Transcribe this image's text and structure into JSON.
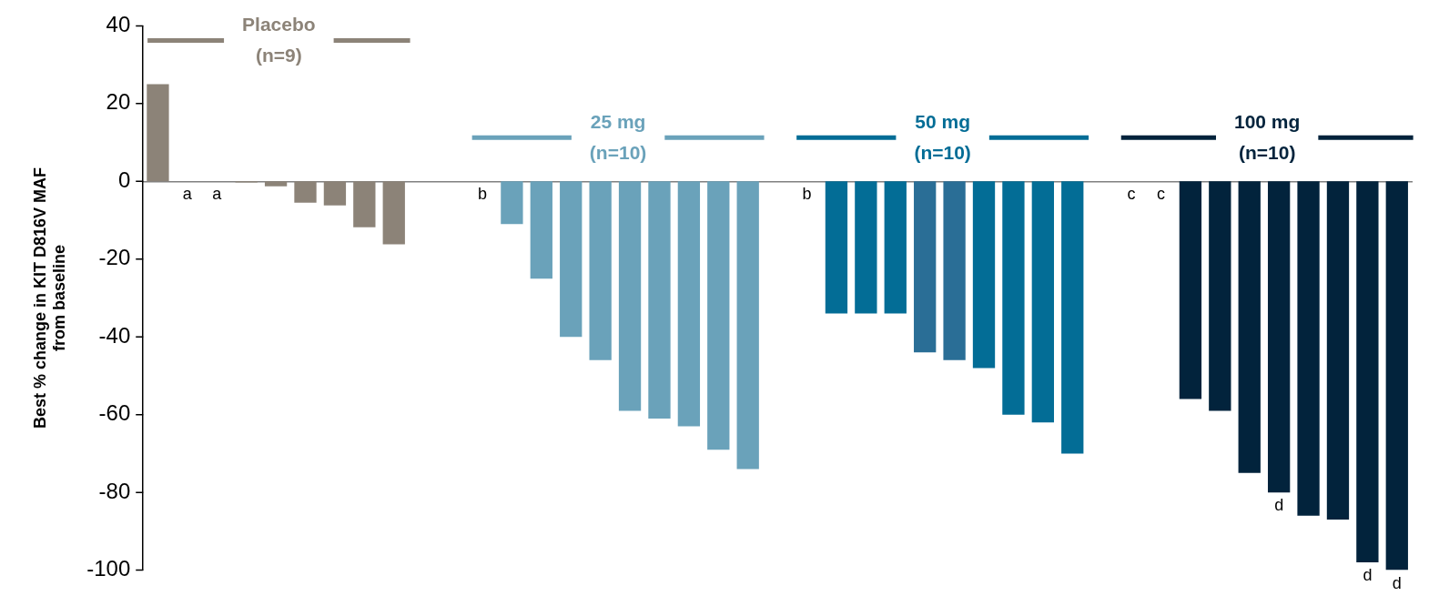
{
  "chart_data": {
    "type": "bar",
    "ylabel": "Best % change in KIT D816V MAF from baseline",
    "categories": [
      null,
      null,
      null,
      null,
      null,
      null,
      null,
      null,
      null,
      null,
      null,
      null,
      null,
      null,
      null,
      null,
      null,
      null,
      null,
      null,
      null,
      null,
      null,
      null,
      null,
      null,
      null,
      null,
      null,
      null,
      null,
      null,
      null,
      null,
      null,
      null,
      null,
      null,
      null,
      null,
      null,
      null,
      null
    ],
    "ylim": [
      -100,
      40
    ],
    "yticks": [
      -100,
      -80,
      -60,
      -40,
      -20,
      0,
      20,
      40
    ],
    "legend": "top",
    "tick_labels": "y",
    "series": [
      {
        "name": "Placebo (n=9)",
        "color": "#8c8378",
        "values": [
          25,
          null,
          null,
          -0.3,
          -1.3,
          -5.5,
          -6.2,
          -11.8,
          -16.2,
          null,
          null,
          null,
          null,
          null,
          null,
          null,
          null,
          null,
          null,
          null,
          null,
          null,
          null,
          null,
          null,
          null,
          null,
          null,
          null,
          null,
          null,
          null,
          null,
          null,
          null,
          null,
          null,
          null,
          null,
          null,
          null,
          null,
          null
        ],
        "value_labels": [
          null,
          "a",
          "a",
          null,
          null,
          null,
          null,
          null,
          null,
          null,
          null,
          null,
          null,
          null,
          null,
          null,
          null,
          null,
          null,
          null,
          null,
          null,
          null,
          null,
          null,
          null,
          null,
          null,
          null,
          null,
          null,
          null,
          null,
          null,
          null,
          null,
          null,
          null,
          null,
          null,
          null,
          null,
          null
        ]
      },
      {
        "name": "25 mg (n=10)",
        "color": "#6aa2ba",
        "values": [
          null,
          null,
          null,
          null,
          null,
          null,
          null,
          null,
          null,
          null,
          null,
          null,
          -11,
          -25,
          -40,
          -46,
          -59,
          -61,
          -63,
          -69,
          -74,
          null,
          null,
          null,
          null,
          null,
          null,
          null,
          null,
          null,
          null,
          null,
          null,
          null,
          null,
          null,
          null,
          null,
          null,
          null,
          null,
          null,
          null
        ],
        "value_labels": [
          null,
          null,
          null,
          null,
          null,
          null,
          null,
          null,
          null,
          null,
          null,
          "b",
          null,
          null,
          null,
          null,
          null,
          null,
          null,
          null,
          null,
          null,
          null,
          null,
          null,
          null,
          null,
          null,
          null,
          null,
          null,
          null,
          null,
          null,
          null,
          null,
          null,
          null,
          null,
          null,
          null,
          null,
          null
        ]
      },
      {
        "name": "50 mg (n=10)",
        "color": "#036d96",
        "values": [
          null,
          null,
          null,
          null,
          null,
          null,
          null,
          null,
          null,
          null,
          null,
          null,
          null,
          null,
          null,
          null,
          null,
          null,
          null,
          null,
          null,
          null,
          null,
          -34,
          -34,
          -34,
          -44,
          -46,
          -48,
          -60,
          -62,
          -70,
          null,
          null,
          null,
          null,
          null,
          null,
          null,
          null,
          null,
          null,
          null
        ],
        "colors": [
          null,
          null,
          null,
          null,
          null,
          null,
          null,
          null,
          null,
          null,
          null,
          null,
          null,
          null,
          null,
          null,
          null,
          null,
          null,
          null,
          null,
          null,
          null,
          "#036d96",
          "#036d96",
          "#036d96",
          "#2a6e96",
          "#2a6e96",
          "#036d96",
          "#036d96",
          "#036d96",
          "#036d96",
          null,
          null,
          null,
          null,
          null,
          null,
          null,
          null,
          null,
          null,
          null
        ],
        "value_labels": [
          null,
          null,
          null,
          null,
          null,
          null,
          null,
          null,
          null,
          null,
          null,
          null,
          null,
          null,
          null,
          null,
          null,
          null,
          null,
          null,
          null,
          null,
          "b",
          null,
          null,
          null,
          null,
          null,
          null,
          null,
          null,
          null,
          null,
          null,
          null,
          null,
          null,
          null,
          null,
          null,
          null,
          null,
          null
        ]
      },
      {
        "name": "100 mg (n=10)",
        "color": "#02233c",
        "values": [
          null,
          null,
          null,
          null,
          null,
          null,
          null,
          null,
          null,
          null,
          null,
          null,
          null,
          null,
          null,
          null,
          null,
          null,
          null,
          null,
          null,
          null,
          null,
          null,
          null,
          null,
          null,
          null,
          null,
          null,
          null,
          null,
          null,
          null,
          null,
          -56,
          -59,
          -75,
          -80,
          -86,
          -87,
          -98,
          -100
        ],
        "value_labels": [
          null,
          null,
          null,
          null,
          null,
          null,
          null,
          null,
          null,
          null,
          null,
          null,
          null,
          null,
          null,
          null,
          null,
          null,
          null,
          null,
          null,
          null,
          null,
          null,
          null,
          null,
          null,
          null,
          null,
          null,
          null,
          null,
          null,
          "c",
          "c",
          null,
          null,
          null,
          "d",
          null,
          null,
          "d",
          "d"
        ]
      }
    ]
  }
}
